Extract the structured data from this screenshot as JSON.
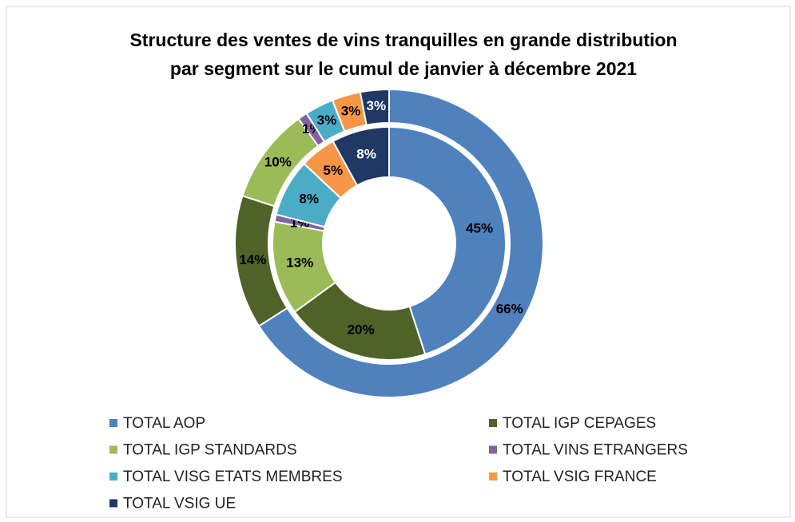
{
  "chart_data": {
    "type": "donut",
    "title": [
      "Structure des ventes de vins tranquilles  en grande distribution",
      "par segment sur le cumul  de janvier à décembre 2021"
    ],
    "categories": [
      "TOTAL AOP",
      "TOTAL IGP CEPAGES",
      "TOTAL IGP STANDARDS",
      "TOTAL VINS ETRANGERS",
      "TOTAL VISG ETATS MEMBRES",
      "TOTAL VSIG FRANCE",
      "TOTAL VSIG UE"
    ],
    "colors": [
      "#4f81bd",
      "#4f6228",
      "#9bbb59",
      "#8064a2",
      "#4bacc6",
      "#f79646",
      "#1f3864"
    ],
    "series": [
      {
        "values": [
          45,
          20,
          13,
          1,
          8,
          5,
          8
        ],
        "value_labels": [
          "45%",
          "20%",
          "13%",
          "1%",
          "8%",
          "5%",
          "8%"
        ]
      },
      {
        "values": [
          66,
          14,
          10,
          1,
          3,
          3,
          3
        ],
        "value_labels": [
          "66%",
          "14%",
          "10%",
          "1%",
          "3%",
          "3%",
          "3%"
        ]
      }
    ]
  }
}
